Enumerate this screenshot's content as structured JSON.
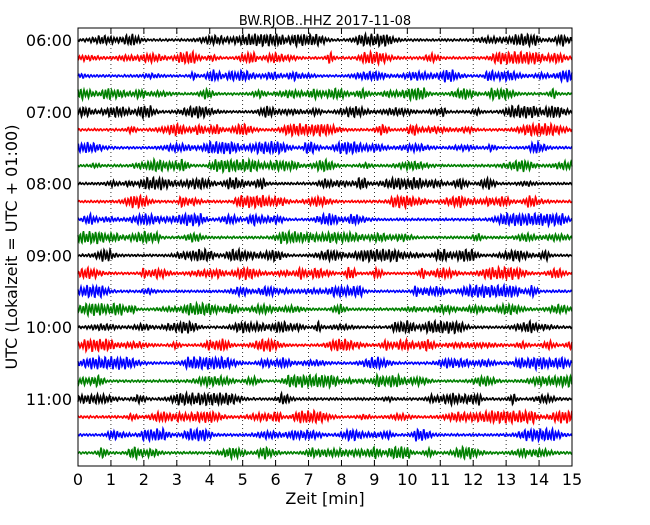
{
  "chart_data": {
    "type": "line",
    "title": "BW.RJOB..HHZ 2017-11-08",
    "xlabel": "Zeit  [min]",
    "ylabel": "UTC (Lokalzeit = UTC + 01:00)",
    "xlim": [
      0,
      15
    ],
    "x_ticks": [
      "0",
      "1",
      "2",
      "3",
      "4",
      "5",
      "6",
      "7",
      "8",
      "9",
      "10",
      "11",
      "12",
      "13",
      "14",
      "15"
    ],
    "y_ticks": [
      "06:00",
      "07:00",
      "08:00",
      "09:00",
      "10:00",
      "11:00"
    ],
    "rows_per_hour": 4,
    "row_interval_min": 15,
    "row_start_times": [
      "06:00",
      "06:15",
      "06:30",
      "06:45",
      "07:00",
      "07:15",
      "07:30",
      "07:45",
      "08:00",
      "08:15",
      "08:30",
      "08:45",
      "09:00",
      "09:15",
      "09:30",
      "09:45",
      "10:00",
      "10:15",
      "10:30",
      "10:45",
      "11:00",
      "11:15",
      "11:30",
      "11:45"
    ],
    "trace_colors": [
      "#000000",
      "#ff0000",
      "#0000ff",
      "#008000"
    ],
    "grid": "vertical dotted at each minute"
  }
}
